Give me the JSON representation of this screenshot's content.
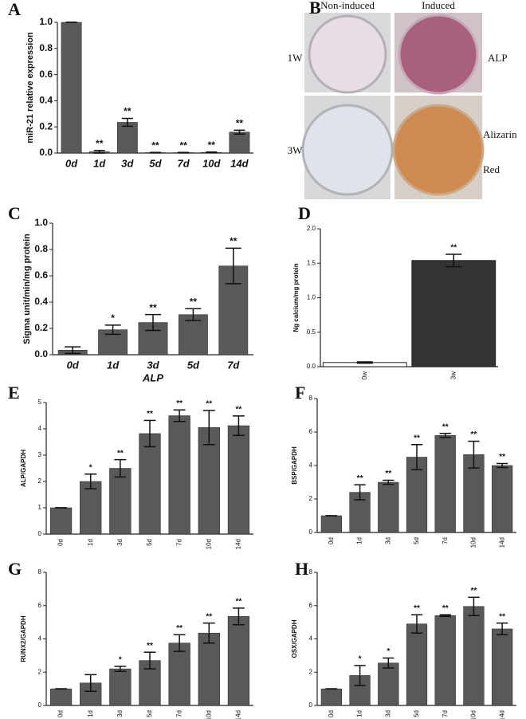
{
  "chart_data": [
    {
      "type": "bar",
      "panel": "A",
      "ylabel": "miR-21 relative expression",
      "color": "#595959",
      "categories": [
        "0d",
        "1d",
        "3d",
        "5d",
        "7d",
        "10d",
        "14d"
      ],
      "values": [
        1.0,
        0.01,
        0.235,
        0.003,
        0.003,
        0.005,
        0.16
      ],
      "errors": [
        0,
        0.01,
        0.03,
        0.002,
        0.002,
        0.003,
        0.015
      ],
      "annotations": [
        null,
        "**",
        "**",
        "**",
        "**",
        "**",
        "**"
      ],
      "ylim": [
        0,
        1.0
      ],
      "yticks": [
        {
          "value": 0,
          "label": "0.0"
        },
        0.2,
        0.4,
        0.6,
        0.8,
        {
          "value": 1.0,
          "label": "1.0"
        }
      ]
    },
    {
      "type": "bar",
      "panel": "C",
      "ylabel": "Sigma unit/min/mg protein",
      "xlabel": "ALP",
      "color": "#595959",
      "categories": [
        "0d",
        "1d",
        "3d",
        "5d",
        "7d"
      ],
      "values": [
        0.035,
        0.19,
        0.245,
        0.305,
        0.675
      ],
      "errors": [
        0.025,
        0.035,
        0.06,
        0.045,
        0.135
      ],
      "annotations": [
        null,
        "*",
        "**",
        "**",
        "**"
      ],
      "ylim": [
        0,
        1.0
      ],
      "yticks": [
        {
          "value": 0,
          "label": "0.0"
        },
        0.2,
        0.4,
        0.6,
        0.8,
        {
          "value": 1.0,
          "label": "1.0"
        }
      ]
    },
    {
      "type": "bar",
      "panel": "D",
      "ylabel": "Ng calcium/mg protein",
      "colors": [
        "#ffffff",
        "#333333"
      ],
      "categories": [
        "0w",
        "3w"
      ],
      "values": [
        0.06,
        1.54
      ],
      "errors": [
        0.01,
        0.09
      ],
      "annotations": [
        null,
        "**"
      ],
      "ylim": [
        0,
        2.0
      ],
      "yticks": [
        {
          "value": 0,
          "label": "0.0"
        },
        0.5,
        {
          "value": 1.0,
          "label": "1.0"
        },
        1.5,
        {
          "value": 2.0,
          "label": "2.0"
        }
      ]
    },
    {
      "type": "bar",
      "panel": "E",
      "ylabel": "ALP/GAPDH",
      "color": "#595959",
      "categories": [
        "0d",
        "1d",
        "3d",
        "5d",
        "7d",
        "10d",
        "14d"
      ],
      "values": [
        1,
        2.0,
        2.5,
        3.82,
        4.5,
        4.05,
        4.12
      ],
      "errors": [
        0,
        0.28,
        0.33,
        0.5,
        0.22,
        0.65,
        0.37
      ],
      "annotations": [
        null,
        "*",
        "**",
        "**",
        "**",
        "**",
        "**"
      ],
      "ylim": [
        0,
        5
      ],
      "yticks": [
        0,
        1,
        2,
        3,
        4,
        5
      ]
    },
    {
      "type": "bar",
      "panel": "F",
      "ylabel": "BSP/GAPDH",
      "color": "#595959",
      "categories": [
        "0d",
        "1d",
        "3d",
        "5d",
        "7d",
        "10d",
        "14d"
      ],
      "values": [
        1,
        2.4,
        3.0,
        4.5,
        5.8,
        4.65,
        4.0
      ],
      "errors": [
        0,
        0.45,
        0.12,
        0.75,
        0.12,
        0.8,
        0.12
      ],
      "annotations": [
        null,
        "**",
        "**",
        "**",
        "**",
        "**",
        "**"
      ],
      "ylim": [
        0,
        8
      ],
      "yticks": [
        0,
        2,
        4,
        6,
        8
      ]
    },
    {
      "type": "bar",
      "panel": "G",
      "ylabel": "RUNX2/GAPDH",
      "color": "#595959",
      "categories": [
        "0d",
        "1d",
        "3d",
        "5d",
        "7d",
        "10d",
        "14d"
      ],
      "values": [
        1,
        1.35,
        2.2,
        2.7,
        3.75,
        4.35,
        5.35
      ],
      "errors": [
        0,
        0.5,
        0.15,
        0.5,
        0.5,
        0.6,
        0.5
      ],
      "annotations": [
        null,
        null,
        "*",
        "**",
        "**",
        "**",
        "**"
      ],
      "ylim": [
        0,
        8
      ],
      "yticks": [
        0,
        2,
        4,
        6,
        8
      ]
    },
    {
      "type": "bar",
      "panel": "H",
      "ylabel": "OSX/GAPDH",
      "color": "#595959",
      "categories": [
        "0d",
        "1d",
        "3d",
        "5d",
        "7d",
        "10d",
        "14d"
      ],
      "values": [
        1,
        1.8,
        2.55,
        4.9,
        5.4,
        5.95,
        4.6
      ],
      "errors": [
        0,
        0.6,
        0.3,
        0.55,
        0.05,
        0.55,
        0.35
      ],
      "annotations": [
        null,
        "*",
        "*",
        "**",
        "**",
        "**",
        "**"
      ],
      "ylim": [
        0,
        8
      ],
      "yticks": [
        0,
        2,
        4,
        6,
        8
      ]
    }
  ],
  "panel_b": {
    "panel": "B",
    "columns": [
      "Non-induced",
      "Induced"
    ],
    "rows": [
      "1W",
      "3W"
    ],
    "stains": [
      "ALP",
      "Alizarin",
      "Red"
    ]
  }
}
